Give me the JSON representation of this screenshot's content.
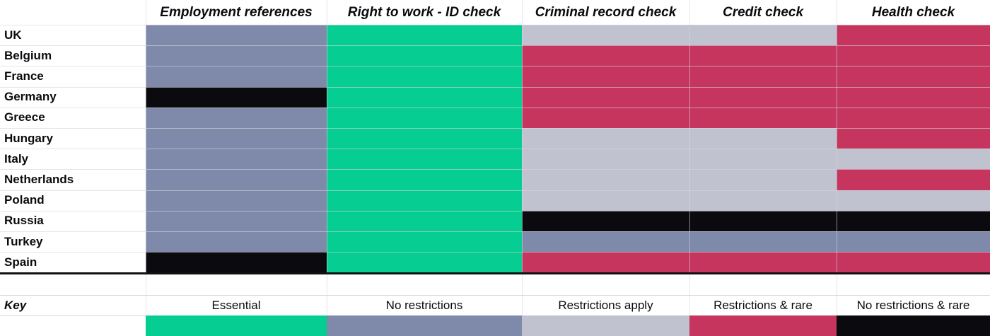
{
  "colors": {
    "essential": "#06cd91",
    "no_restrictions": "#7f89a9",
    "restrictions_apply": "#c0c2d0",
    "restrictions_rare": "#c6355d",
    "no_restrictions_rare": "#0b0b0f"
  },
  "columns": [
    "Employment references",
    "Right to work - ID check",
    "Criminal record check",
    "Credit check",
    "Health check"
  ],
  "rows": [
    {
      "country": "UK",
      "cells": [
        "no_restrictions",
        "essential",
        "restrictions_apply",
        "restrictions_apply",
        "restrictions_rare"
      ]
    },
    {
      "country": "Belgium",
      "cells": [
        "no_restrictions",
        "essential",
        "restrictions_rare",
        "restrictions_rare",
        "restrictions_rare"
      ]
    },
    {
      "country": "France",
      "cells": [
        "no_restrictions",
        "essential",
        "restrictions_rare",
        "restrictions_rare",
        "restrictions_rare"
      ]
    },
    {
      "country": "Germany",
      "cells": [
        "no_restrictions_rare",
        "essential",
        "restrictions_rare",
        "restrictions_rare",
        "restrictions_rare"
      ]
    },
    {
      "country": "Greece",
      "cells": [
        "no_restrictions",
        "essential",
        "restrictions_rare",
        "restrictions_rare",
        "restrictions_rare"
      ]
    },
    {
      "country": "Hungary",
      "cells": [
        "no_restrictions",
        "essential",
        "restrictions_apply",
        "restrictions_apply",
        "restrictions_rare"
      ]
    },
    {
      "country": "Italy",
      "cells": [
        "no_restrictions",
        "essential",
        "restrictions_apply",
        "restrictions_apply",
        "restrictions_apply"
      ]
    },
    {
      "country": "Netherlands",
      "cells": [
        "no_restrictions",
        "essential",
        "restrictions_apply",
        "restrictions_apply",
        "restrictions_rare"
      ]
    },
    {
      "country": "Poland",
      "cells": [
        "no_restrictions",
        "essential",
        "restrictions_apply",
        "restrictions_apply",
        "restrictions_apply"
      ]
    },
    {
      "country": "Russia",
      "cells": [
        "no_restrictions",
        "essential",
        "no_restrictions_rare",
        "no_restrictions_rare",
        "no_restrictions_rare"
      ]
    },
    {
      "country": "Turkey",
      "cells": [
        "no_restrictions",
        "essential",
        "no_restrictions",
        "no_restrictions",
        "no_restrictions"
      ]
    },
    {
      "country": "Spain",
      "cells": [
        "no_restrictions_rare",
        "essential",
        "restrictions_rare",
        "restrictions_rare",
        "restrictions_rare"
      ]
    }
  ],
  "key": {
    "label": "Key",
    "items": [
      {
        "label": "Essential",
        "color_key": "essential"
      },
      {
        "label": "No restrictions",
        "color_key": "no_restrictions"
      },
      {
        "label": "Restrictions apply",
        "color_key": "restrictions_apply"
      },
      {
        "label": "Restrictions & rare",
        "color_key": "restrictions_rare"
      },
      {
        "label": "No restrictions & rare",
        "color_key": "no_restrictions_rare"
      }
    ]
  }
}
